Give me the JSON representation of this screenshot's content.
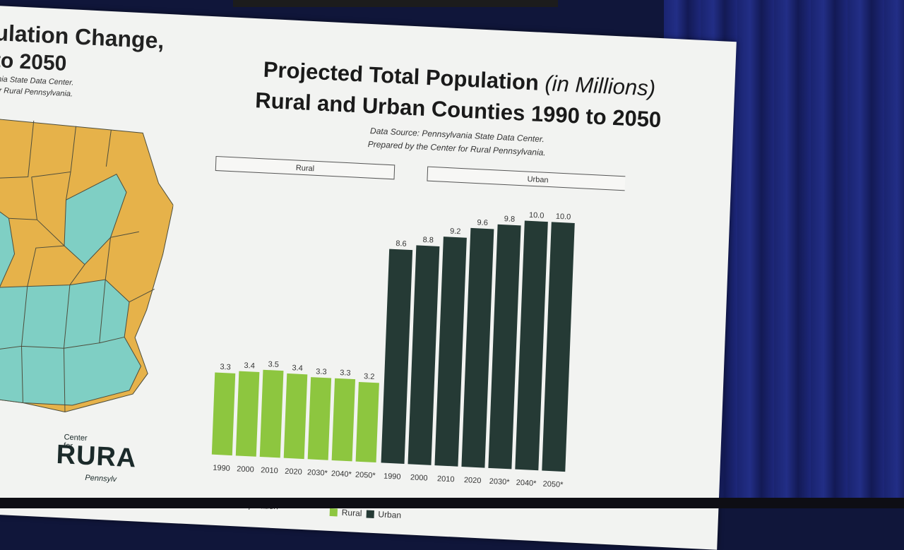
{
  "left_panel": {
    "title_line1": "ulation Change,",
    "title_line2": "to 2050",
    "source_line1": "ania State Data Center.",
    "source_line2": "for Rural Pennsylvania.",
    "map_colors": {
      "rural": "#e6b24a",
      "urban": "#7fcfc4"
    }
  },
  "logo": {
    "small": "Center for",
    "big": "RURA",
    "sub": "Pennsylv"
  },
  "footnote": "*Projected Population",
  "chart_data": {
    "type": "bar",
    "title": "Projected Total Population",
    "title_italic": "(in Millions)",
    "subtitle": "Rural and Urban Counties 1990 to 2050",
    "source_line1": "Data Source: Pennsylvania State Data Center.",
    "source_line2": "Prepared by the Center for Rural Pennsylvania.",
    "categories": [
      "1990",
      "2000",
      "2010",
      "2020",
      "2030*",
      "2040*",
      "2050*"
    ],
    "ylim": [
      0,
      10.5
    ],
    "series": [
      {
        "name": "Rural",
        "color": "#8dc63f",
        "values": [
          3.3,
          3.4,
          3.5,
          3.4,
          3.3,
          3.3,
          3.2
        ]
      },
      {
        "name": "Urban",
        "color": "#253a35",
        "values": [
          8.6,
          8.8,
          9.2,
          9.6,
          9.8,
          10.0,
          10.0
        ]
      }
    ],
    "group_headers": [
      "Rural",
      "Urban"
    ],
    "legend": [
      "Rural",
      "Urban"
    ],
    "legend_position": "bottom"
  }
}
